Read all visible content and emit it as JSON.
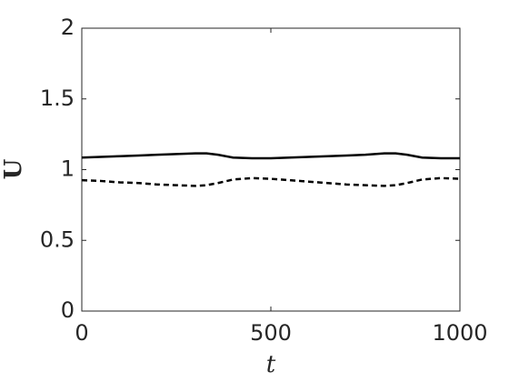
{
  "chart_data": {
    "type": "line",
    "xlabel": "t",
    "ylabel": "U",
    "x": [
      0,
      50,
      100,
      150,
      200,
      250,
      300,
      330,
      360,
      400,
      450,
      500,
      550,
      600,
      650,
      700,
      750,
      800,
      830,
      860,
      900,
      950,
      1000
    ],
    "series": [
      {
        "color": "#000000",
        "dashed": false,
        "values": [
          1.085,
          1.09,
          1.095,
          1.1,
          1.105,
          1.11,
          1.115,
          1.115,
          1.105,
          1.085,
          1.08,
          1.08,
          1.085,
          1.09,
          1.095,
          1.1,
          1.105,
          1.115,
          1.115,
          1.105,
          1.085,
          1.08,
          1.08
        ]
      },
      {
        "color": "#000000",
        "dashed": true,
        "values": [
          0.925,
          0.92,
          0.91,
          0.905,
          0.895,
          0.89,
          0.885,
          0.89,
          0.905,
          0.93,
          0.94,
          0.935,
          0.925,
          0.915,
          0.905,
          0.895,
          0.89,
          0.885,
          0.89,
          0.905,
          0.93,
          0.94,
          0.935
        ]
      }
    ],
    "xlim": [
      0,
      1000
    ],
    "xticks": [
      0,
      500,
      1000
    ],
    "ylim": [
      0,
      2
    ],
    "yticks": [
      0,
      0.5,
      1,
      1.5,
      2
    ],
    "grid": false,
    "box": true
  }
}
